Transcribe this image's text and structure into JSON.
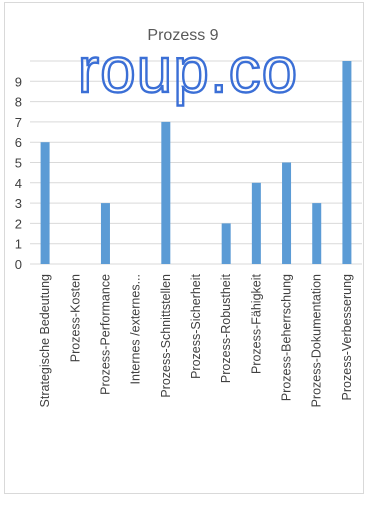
{
  "watermark": "roup.co",
  "chart_data": {
    "type": "bar",
    "title": "Prozess 9",
    "xlabel": "",
    "ylabel": "",
    "ylim": [
      0,
      10
    ],
    "yticks": [
      0,
      1,
      2,
      3,
      4,
      5,
      6,
      7,
      8,
      9
    ],
    "grid": true,
    "legend": "none",
    "bar_color": "#5b9bd5",
    "categories": [
      "Strategische Bedeutung",
      "Prozess-Kosten",
      "Prozess-Performance",
      "Internes /externes...",
      "Prozess-Schnittstellen",
      "Prozess-Sicherheit",
      "Prozess-Robustheit",
      "Prozess-Fähigkeit",
      "Prozess-Beherrschung",
      "Prozess-Dokumentation",
      "Prozess-Verbesserung"
    ],
    "values": [
      6,
      0,
      3,
      0,
      7,
      0,
      2,
      4,
      5,
      3,
      10
    ]
  }
}
